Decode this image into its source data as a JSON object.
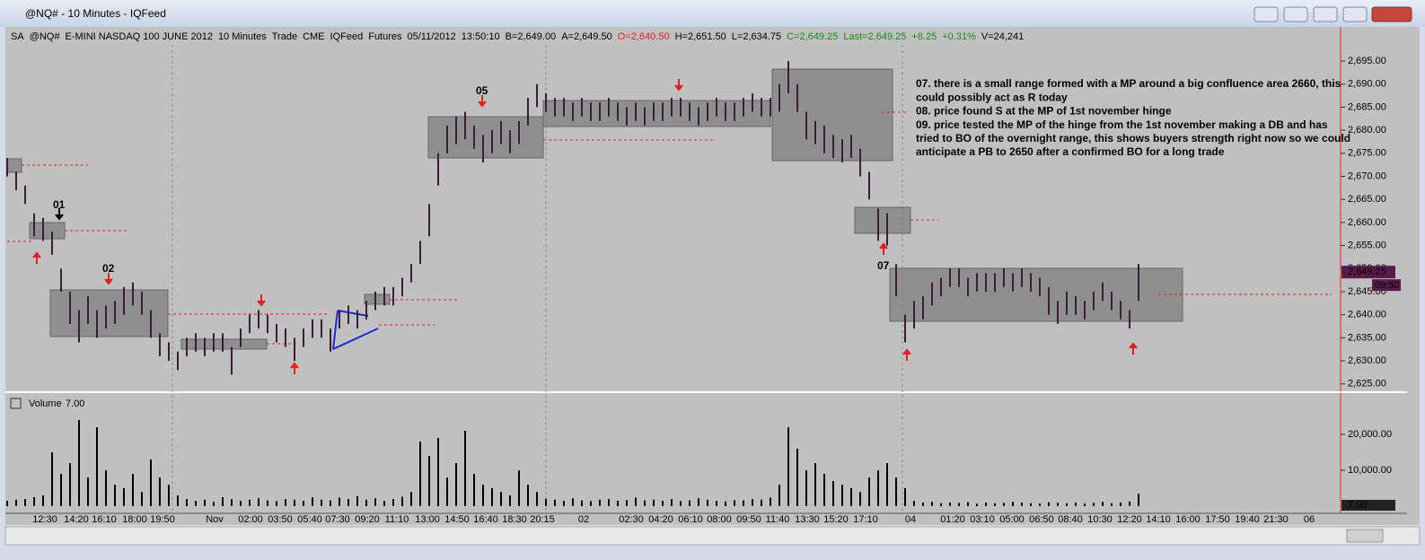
{
  "window_title": "@NQ# - 10 Minutes - IQFeed",
  "toolbar": [
    "SA",
    "@NQ#",
    "E-MINI NASDAQ 100 JUNE 2012",
    "10 Minutes",
    "Trade",
    "CME",
    "IQFeed",
    "Futures",
    "05/11/2012",
    "13:50:10",
    "B=2,649.00",
    "A=2,649.50",
    "O=2,640.50",
    "H=2,651.50",
    "L=2,634.75",
    "C=2,649.25",
    "Last=2,649.25",
    "+8.25",
    "+0.31%",
    "V=24,241"
  ],
  "labels": [
    "01",
    "02",
    "05",
    "07"
  ],
  "annotations": [
    "07. there is a small range formed with a MP around a big confluence area 2660, this",
    "could possibly act as R today",
    "08. price found S at the MP of 1st november hinge",
    "09. price tested the MP of the hinge from the 1st november making a DB and has",
    "tried to BO of the overnight range, this shows buyers strength right now so we could",
    "anticipate a PB to 2650 after a confirmed BO for a long trade"
  ],
  "time_labels": [
    "12:30",
    "14:20",
    "16:10",
    "18:00",
    "19:50",
    "Nov",
    "02:00",
    "03:50",
    "05:40",
    "07:30",
    "09:20",
    "11:10",
    "13:00",
    "14:50",
    "16:40",
    "18:30",
    "20:15",
    "02",
    "02:30",
    "04:20",
    "06:10",
    "08:00",
    "09:50",
    "11:40",
    "13:30",
    "15:20",
    "17:10",
    "04",
    "01:20",
    "03:10",
    "05:00",
    "06:50",
    "08:40",
    "10:30",
    "12:20",
    "14:10",
    "16:00",
    "17:50",
    "19:40",
    "21:30",
    "06"
  ],
  "chart_data": [
    {
      "type": "range-bar",
      "color": "#3b1d3b",
      "high": [
        2674,
        2671,
        2668,
        2662,
        2661,
        2658,
        2650,
        2645,
        2641,
        2644,
        2641,
        2642,
        2643,
        2646,
        2647,
        2645,
        2641,
        2636,
        2634,
        2632,
        2635,
        2636,
        2635,
        2636,
        2636,
        2633,
        2637,
        2640,
        2641,
        2640,
        2638,
        2637,
        2635,
        2637,
        2639,
        2639,
        2637,
        2641,
        2642,
        2641,
        2643,
        2645,
        2646,
        2646,
        2648,
        2651,
        2656,
        2664,
        2675,
        2681,
        2683,
        2684,
        2681,
        2679,
        2680,
        2682,
        2680,
        2682,
        2687,
        2690,
        2688,
        2687,
        2687,
        2686,
        2687,
        2686,
        2686,
        2687,
        2686,
        2685,
        2686,
        2685,
        2686,
        2686,
        2687,
        2687,
        2686,
        2685,
        2686,
        2687,
        2686,
        2686,
        2687,
        2688,
        2687,
        2687,
        2690,
        2695,
        2690,
        2684,
        2682,
        2681,
        2679,
        2678,
        2679,
        2676,
        2671,
        2663,
        2662,
        2651,
        2640,
        2643,
        2644,
        2647,
        2648,
        2650,
        2650,
        2648,
        2649,
        2649,
        2649,
        2650,
        2649,
        2650,
        2649,
        2648,
        2646,
        2643,
        2645,
        2644,
        2643,
        2645,
        2647,
        2645,
        2643,
        2641,
        2651
      ],
      "low": [
        2670,
        2667,
        2664,
        2657,
        2656,
        2653,
        2645,
        2638,
        2634,
        2638,
        2635,
        2637,
        2638,
        2640,
        2642,
        2640,
        2635,
        2631,
        2630,
        2628,
        2631,
        2632,
        2631,
        2632,
        2632,
        2627,
        2633,
        2636,
        2637,
        2636,
        2634,
        2633,
        2630,
        2633,
        2635,
        2635,
        2632,
        2637,
        2638,
        2637,
        2639,
        2641,
        2642,
        2642,
        2644,
        2647,
        2651,
        2657,
        2668,
        2675,
        2677,
        2678,
        2676,
        2673,
        2675,
        2677,
        2675,
        2677,
        2681,
        2685,
        2684,
        2683,
        2683,
        2682,
        2683,
        2682,
        2682,
        2683,
        2682,
        2681,
        2682,
        2681,
        2682,
        2682,
        2683,
        2683,
        2682,
        2681,
        2682,
        2683,
        2682,
        2682,
        2683,
        2684,
        2683,
        2683,
        2684,
        2688,
        2684,
        2678,
        2677,
        2675,
        2674,
        2673,
        2674,
        2670,
        2665,
        2656,
        2655,
        2644,
        2634,
        2637,
        2639,
        2642,
        2644,
        2646,
        2646,
        2644,
        2645,
        2645,
        2645,
        2646,
        2645,
        2646,
        2645,
        2644,
        2640,
        2638,
        2640,
        2640,
        2639,
        2641,
        2643,
        2641,
        2639,
        2637,
        2643
      ],
      "ylim": [
        2623.6,
        2698.5
      ],
      "yticks": [
        {
          "value": 2625,
          "label": "2,625.00"
        },
        {
          "value": 2630,
          "label": "2,630.00"
        },
        {
          "value": 2635,
          "label": "2,635.00"
        },
        {
          "value": 2640,
          "label": "2,640.00"
        },
        {
          "value": 2645,
          "label": "2,645.00"
        },
        {
          "value": 2650,
          "label": "2,650.00"
        },
        {
          "value": 2655,
          "label": "2,655.00"
        },
        {
          "value": 2660,
          "label": "2,660.00"
        },
        {
          "value": 2665,
          "label": "2,665.00"
        },
        {
          "value": 2670,
          "label": "2,670.00"
        },
        {
          "value": 2675,
          "label": "2,675.00"
        },
        {
          "value": 2680,
          "label": "2,680.00"
        },
        {
          "value": 2685,
          "label": "2,685.00"
        },
        {
          "value": 2690,
          "label": "2,690.00"
        },
        {
          "value": 2695,
          "label": "2,695.00"
        }
      ],
      "last_price": {
        "value": 2649.25,
        "label": "2,649.25"
      },
      "countdown": "09:50"
    },
    {
      "type": "bar",
      "title": "Volume",
      "title_value": "7.00",
      "color": "#000000",
      "values": [
        1500,
        1800,
        2000,
        2500,
        3000,
        15000,
        9000,
        12000,
        24000,
        8000,
        22000,
        10000,
        6000,
        5000,
        9000,
        4000,
        13000,
        8000,
        6000,
        3000,
        2000,
        1500,
        1800,
        1200,
        2500,
        2000,
        1500,
        1800,
        2200,
        1600,
        1400,
        2000,
        1800,
        1500,
        2500,
        1800,
        1600,
        2400,
        2000,
        2800,
        1800,
        2200,
        1500,
        2000,
        2600,
        4000,
        18000,
        14000,
        19000,
        8000,
        12000,
        21000,
        9000,
        6000,
        5000,
        4000,
        3000,
        10000,
        6000,
        4000,
        2000,
        1800,
        1500,
        2200,
        1600,
        1400,
        1800,
        2000,
        1500,
        1700,
        2400,
        1600,
        1800,
        1500,
        2000,
        1400,
        1600,
        2200,
        1800,
        1500,
        1300,
        1700,
        1600,
        2000,
        1800,
        2400,
        6000,
        22000,
        16000,
        10000,
        12000,
        9000,
        7000,
        6000,
        5000,
        4000,
        8000,
        10000,
        12000,
        8000,
        5000,
        1500,
        1000,
        1200,
        800,
        1000,
        900,
        1100,
        700,
        1000,
        800,
        900,
        1200,
        1000,
        800,
        700,
        1100,
        900,
        800,
        1000,
        700,
        900,
        1200,
        800,
        1000,
        1300,
        3500
      ],
      "ylim": [
        -1000,
        30500
      ],
      "yticks": [
        {
          "value": 10000,
          "label": "10,000.00"
        },
        {
          "value": 20000,
          "label": "20,000.00"
        }
      ],
      "last_value": {
        "value": 7,
        "label": "7.00"
      }
    }
  ]
}
